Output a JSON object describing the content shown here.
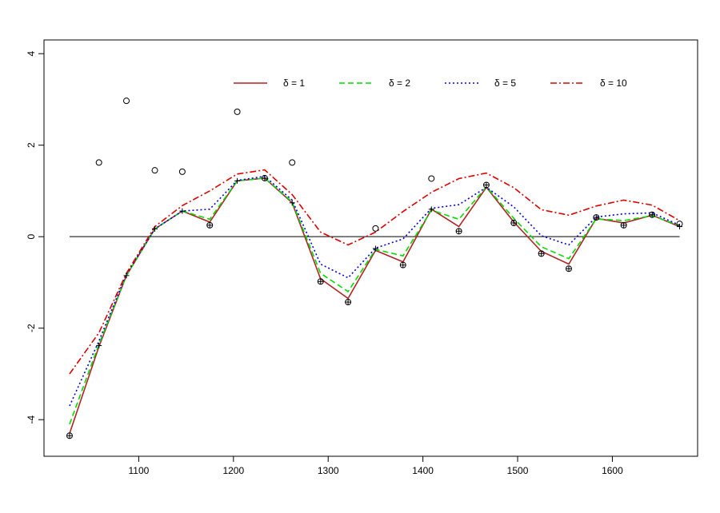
{
  "chart_data": {
    "type": "line",
    "title": "",
    "xlabel": "",
    "ylabel": "",
    "xlim": [
      1000,
      1690
    ],
    "ylim": [
      -4.8,
      4.3
    ],
    "x_ticks": [
      1100,
      1200,
      1300,
      1400,
      1500,
      1600
    ],
    "y_ticks": [
      -4,
      -2,
      0,
      2,
      4
    ],
    "x_tick_labels": [
      "1100",
      "1200",
      "1300",
      "1400",
      "1500",
      "1600"
    ],
    "y_tick_labels": [
      "-4",
      "-2",
      "0",
      "2",
      "4"
    ],
    "grid": false,
    "legend_position": "top",
    "x": [
      1027,
      1058,
      1087,
      1117,
      1146,
      1175,
      1204,
      1233,
      1262,
      1292,
      1321,
      1350,
      1379,
      1409,
      1438,
      1467,
      1496,
      1525,
      1554,
      1583,
      1612,
      1642,
      1671
    ],
    "reference_line": {
      "y": 0,
      "color": "#000000"
    },
    "observed": {
      "values": [
        -4.35,
        1.62,
        2.97,
        1.45,
        1.42,
        0.25,
        2.73,
        1.28,
        1.62,
        -0.98,
        -1.43,
        0.18,
        -0.62,
        1.27,
        0.12,
        1.13,
        0.3,
        -0.37,
        -0.7,
        0.42,
        0.25,
        0.48,
        0.28
      ],
      "marker": "open-circle"
    },
    "plus_points": {
      "x": [
        1027,
        1058,
        1087,
        1117,
        1146,
        1175,
        1204,
        1233,
        1262,
        1292,
        1321,
        1350,
        1379,
        1409,
        1438,
        1467,
        1496,
        1525,
        1554,
        1583,
        1612,
        1642,
        1671
      ],
      "values": [
        -4.35,
        -2.38,
        -0.85,
        0.17,
        0.56,
        0.25,
        1.22,
        1.28,
        0.74,
        -0.98,
        -1.43,
        -0.26,
        -0.62,
        0.6,
        0.12,
        1.13,
        0.3,
        -0.37,
        -0.7,
        0.42,
        0.25,
        0.48,
        0.22
      ],
      "marker": "plus"
    },
    "series": [
      {
        "name": "δ = 1",
        "color": "#b22222",
        "dash": "solid",
        "values": [
          -4.3,
          -2.4,
          -0.85,
          0.17,
          0.56,
          0.32,
          1.22,
          1.28,
          0.74,
          -0.92,
          -1.35,
          -0.3,
          -0.55,
          0.6,
          0.22,
          1.08,
          0.32,
          -0.32,
          -0.6,
          0.4,
          0.3,
          0.47,
          0.22
        ]
      },
      {
        "name": "δ = 2",
        "color": "#00dd00",
        "dash": "dashed",
        "values": [
          -4.1,
          -2.35,
          -0.85,
          0.17,
          0.56,
          0.38,
          1.22,
          1.28,
          0.76,
          -0.8,
          -1.2,
          -0.28,
          -0.42,
          0.58,
          0.38,
          1.09,
          0.4,
          -0.22,
          -0.48,
          0.39,
          0.35,
          0.46,
          0.24
        ]
      },
      {
        "name": "δ = 5",
        "color": "#0000dd",
        "dash": "dotted",
        "values": [
          -3.7,
          -2.28,
          -0.82,
          0.17,
          0.56,
          0.6,
          1.23,
          1.32,
          0.8,
          -0.6,
          -0.9,
          -0.25,
          -0.05,
          0.62,
          0.7,
          1.08,
          0.65,
          0.02,
          -0.18,
          0.43,
          0.5,
          0.52,
          0.25
        ]
      },
      {
        "name": "δ = 10",
        "color": "#dd0000",
        "dash": "dashdot",
        "values": [
          -3.0,
          -2.1,
          -0.8,
          0.22,
          0.68,
          1.0,
          1.37,
          1.46,
          0.92,
          0.1,
          -0.18,
          0.1,
          0.55,
          0.97,
          1.27,
          1.39,
          1.07,
          0.59,
          0.47,
          0.67,
          0.8,
          0.69,
          0.35
        ]
      }
    ]
  }
}
